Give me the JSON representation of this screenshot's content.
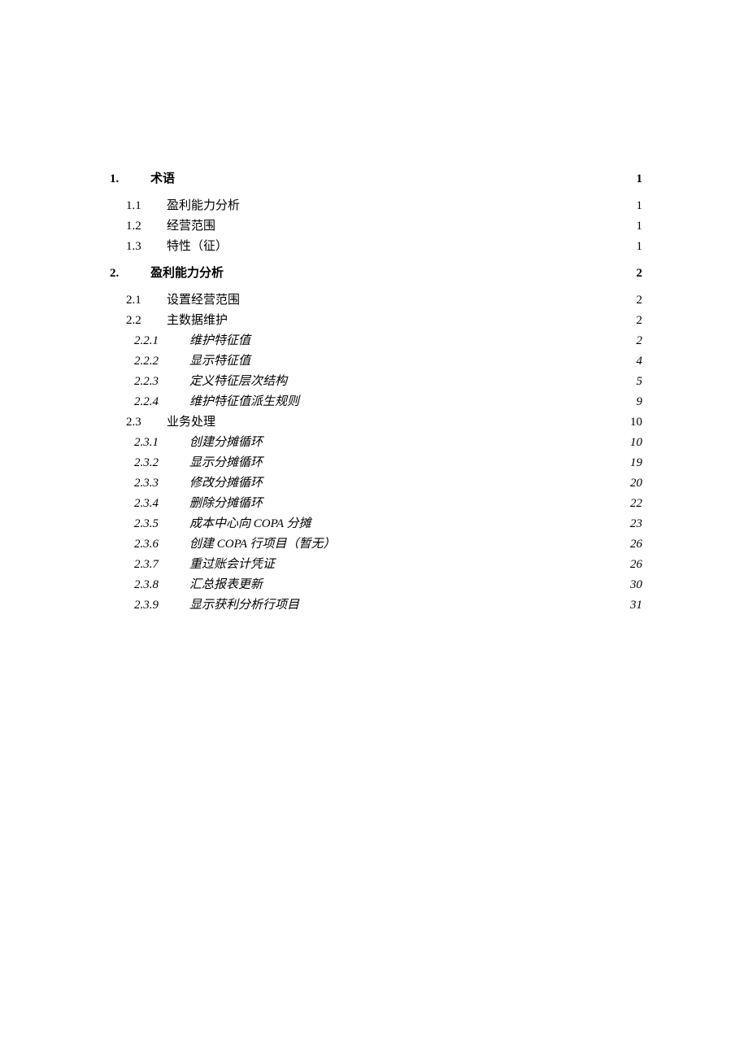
{
  "toc": [
    {
      "level": 1,
      "number": "1.",
      "title": "术语",
      "page": "1"
    },
    {
      "level": 2,
      "number": "1.1",
      "title": "盈利能力分析",
      "page": "1"
    },
    {
      "level": 2,
      "number": "1.2",
      "title": "经营范围",
      "page": "1"
    },
    {
      "level": 2,
      "number": "1.3",
      "title": "特性（征）",
      "page": "1"
    },
    {
      "level": 1,
      "number": "2.",
      "title": "盈利能力分析",
      "page": "2"
    },
    {
      "level": 2,
      "number": "2.1",
      "title": "设置经营范围",
      "page": "2"
    },
    {
      "level": 2,
      "number": "2.2",
      "title": "主数据维护",
      "page": "2"
    },
    {
      "level": 3,
      "number": "2.2.1",
      "title": "维护特征值",
      "page": "2"
    },
    {
      "level": 3,
      "number": "2.2.2",
      "title": "显示特征值",
      "page": "4"
    },
    {
      "level": 3,
      "number": "2.2.3",
      "title": "定义特征层次结构",
      "page": "5"
    },
    {
      "level": 3,
      "number": "2.2.4",
      "title": "维护特征值派生规则",
      "page": "9"
    },
    {
      "level": 2,
      "number": "2.3",
      "title": "业务处理",
      "page": "10"
    },
    {
      "level": 3,
      "number": "2.3.1",
      "title": "创建分摊循环",
      "page": "10"
    },
    {
      "level": 3,
      "number": "2.3.2",
      "title": "显示分摊循环",
      "page": "19"
    },
    {
      "level": 3,
      "number": "2.3.3",
      "title": "修改分摊循环",
      "page": "20"
    },
    {
      "level": 3,
      "number": "2.3.4",
      "title": "删除分摊循环",
      "page": "22"
    },
    {
      "level": 3,
      "number": "2.3.5",
      "title": "成本中心向 COPA 分摊",
      "page": "23"
    },
    {
      "level": 3,
      "number": "2.3.6",
      "title": "创建 COPA 行项目（暂无）",
      "page": "26"
    },
    {
      "level": 3,
      "number": "2.3.7",
      "title": "重过账会计凭证",
      "page": "26"
    },
    {
      "level": 3,
      "number": "2.3.8",
      "title": "汇总报表更新",
      "page": "30"
    },
    {
      "level": 3,
      "number": "2.3.9",
      "title": "显示获利分析行项目",
      "page": "31"
    }
  ]
}
